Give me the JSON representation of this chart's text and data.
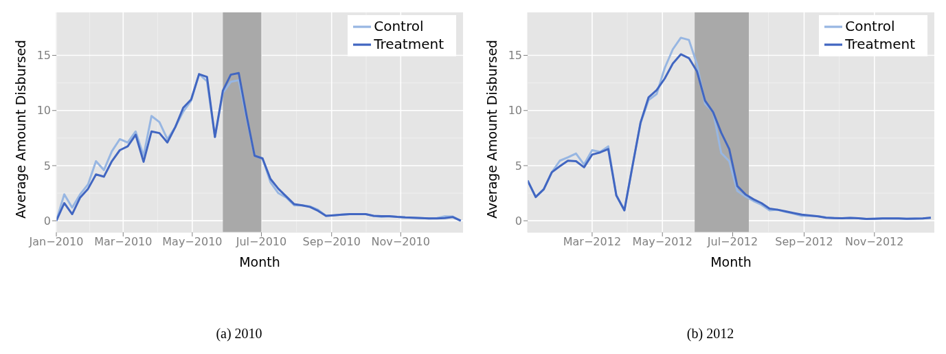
{
  "chart_data": [
    {
      "type": "line",
      "xlabel": "Month",
      "ylabel": "Average Amount Disbursed",
      "annotations": [
        "(a) 2010"
      ],
      "x": [
        "2010-01-01",
        "2010-01-08",
        "2010-01-15",
        "2010-01-22",
        "2010-01-29",
        "2010-02-05",
        "2010-02-12",
        "2010-02-19",
        "2010-02-26",
        "2010-03-05",
        "2010-03-12",
        "2010-03-19",
        "2010-03-26",
        "2010-04-02",
        "2010-04-09",
        "2010-04-16",
        "2010-04-23",
        "2010-04-30",
        "2010-05-07",
        "2010-05-14",
        "2010-05-21",
        "2010-05-28",
        "2010-06-04",
        "2010-06-11",
        "2010-06-18",
        "2010-06-25",
        "2010-07-02",
        "2010-07-09",
        "2010-07-16",
        "2010-07-23",
        "2010-07-30",
        "2010-08-06",
        "2010-08-13",
        "2010-08-20",
        "2010-08-27",
        "2010-09-03",
        "2010-09-10",
        "2010-09-17",
        "2010-09-24",
        "2010-10-01",
        "2010-10-08",
        "2010-10-15",
        "2010-10-22",
        "2010-10-29",
        "2010-11-05",
        "2010-11-12",
        "2010-11-19",
        "2010-11-26",
        "2010-12-03",
        "2010-12-10",
        "2010-12-17",
        "2010-12-24"
      ],
      "series": [
        {
          "name": "Control",
          "color": "#97b6e2",
          "values": [
            0,
            2.4,
            1.2,
            2.4,
            3.3,
            5.4,
            4.6,
            6.3,
            7.4,
            7.1,
            8.1,
            5.9,
            9.5,
            8.95,
            7.4,
            8.5,
            9.9,
            10.9,
            13.3,
            12.65,
            7.6,
            11.6,
            12.6,
            12.75,
            9.3,
            5.9,
            5.65,
            3.5,
            2.5,
            2.1,
            1.4,
            1.4,
            1.3,
            1.0,
            0.45,
            0.5,
            0.55,
            0.6,
            0.6,
            0.6,
            0.45,
            0.35,
            0.4,
            0.35,
            0.3,
            0.28,
            0.25,
            0.22,
            0.25,
            0.4,
            0.38,
            0
          ]
        },
        {
          "name": "Treatment",
          "color": "#4166c1",
          "values": [
            0,
            1.6,
            0.6,
            2.1,
            2.9,
            4.2,
            4.0,
            5.4,
            6.4,
            6.75,
            7.8,
            5.35,
            8.1,
            7.95,
            7.1,
            8.5,
            10.25,
            11.0,
            13.3,
            13.05,
            7.6,
            11.8,
            13.25,
            13.4,
            9.5,
            5.9,
            5.65,
            3.8,
            2.9,
            2.2,
            1.5,
            1.4,
            1.25,
            0.9,
            0.45,
            0.5,
            0.55,
            0.6,
            0.6,
            0.6,
            0.45,
            0.42,
            0.42,
            0.35,
            0.3,
            0.28,
            0.25,
            0.22,
            0.22,
            0.25,
            0.33,
            0
          ]
        }
      ],
      "xlim": [
        "2010-01-01",
        "2010-12-26"
      ],
      "xticks": [
        {
          "value": "2010-01-01",
          "label": "Jan−2010"
        },
        {
          "value": "2010-03-01",
          "label": "Mar−2010"
        },
        {
          "value": "2010-05-01",
          "label": "May−2010"
        },
        {
          "value": "2010-07-01",
          "label": "Jul−2010"
        },
        {
          "value": "2010-09-01",
          "label": "Sep−2010"
        },
        {
          "value": "2010-11-01",
          "label": "Nov−2010"
        }
      ],
      "ylim": [
        -1.05,
        18.9
      ],
      "yticks": [
        0,
        5,
        10,
        15
      ],
      "bands": [
        {
          "axis": "x",
          "from": "2010-05-28",
          "to": "2010-07-01",
          "color": "#a9a9a9"
        }
      ],
      "grid": true,
      "legend": "top right",
      "line_style": "solid"
    },
    {
      "type": "line",
      "xlabel": "Month",
      "ylabel": "Average Amount Disbursed",
      "annotations": [
        "(b) 2012"
      ],
      "x": [
        "2012-01-05",
        "2012-01-12",
        "2012-01-19",
        "2012-01-26",
        "2012-02-02",
        "2012-02-09",
        "2012-02-16",
        "2012-02-23",
        "2012-03-01",
        "2012-03-08",
        "2012-03-15",
        "2012-03-22",
        "2012-03-29",
        "2012-04-05",
        "2012-04-12",
        "2012-04-19",
        "2012-04-26",
        "2012-05-03",
        "2012-05-10",
        "2012-05-17",
        "2012-05-24",
        "2012-05-31",
        "2012-06-07",
        "2012-06-14",
        "2012-06-21",
        "2012-06-28",
        "2012-07-05",
        "2012-07-12",
        "2012-07-19",
        "2012-07-26",
        "2012-08-02",
        "2012-08-09",
        "2012-08-16",
        "2012-08-23",
        "2012-08-30",
        "2012-09-06",
        "2012-09-13",
        "2012-09-20",
        "2012-09-27",
        "2012-10-04",
        "2012-10-11",
        "2012-10-18",
        "2012-10-25",
        "2012-11-01",
        "2012-11-08",
        "2012-11-15",
        "2012-11-22",
        "2012-11-29",
        "2012-12-06",
        "2012-12-13",
        "2012-12-20"
      ],
      "series": [
        {
          "name": "Control",
          "color": "#97b6e2",
          "values": [
            3.65,
            2.15,
            2.85,
            4.4,
            5.45,
            5.75,
            6.1,
            5.1,
            6.4,
            6.25,
            6.75,
            2.3,
            0.95,
            4.95,
            8.85,
            10.95,
            11.5,
            13.85,
            15.55,
            16.6,
            16.4,
            14.2,
            10.6,
            9.9,
            6.15,
            5.4,
            2.7,
            2.2,
            1.8,
            1.45,
            0.95,
            1.0,
            0.8,
            0.65,
            0.45,
            0.45,
            0.42,
            0.3,
            0.25,
            0.23,
            0.26,
            0.23,
            0.17,
            0.18,
            0.21,
            0.21,
            0.21,
            0.18,
            0.19,
            0.21,
            0.28
          ]
        },
        {
          "name": "Treatment",
          "color": "#4166c1",
          "values": [
            3.65,
            2.15,
            2.85,
            4.4,
            4.95,
            5.45,
            5.4,
            4.85,
            6.0,
            6.2,
            6.5,
            2.3,
            0.95,
            4.95,
            8.9,
            11.2,
            11.85,
            12.9,
            14.25,
            15.1,
            14.75,
            13.55,
            10.9,
            9.85,
            8.0,
            6.5,
            3.15,
            2.4,
            1.95,
            1.6,
            1.1,
            1.0,
            0.85,
            0.7,
            0.55,
            0.48,
            0.4,
            0.28,
            0.25,
            0.23,
            0.26,
            0.23,
            0.17,
            0.18,
            0.21,
            0.21,
            0.21,
            0.18,
            0.19,
            0.21,
            0.28
          ]
        }
      ],
      "xlim": [
        "2012-01-05",
        "2012-12-23"
      ],
      "xticks": [
        {
          "value": "2012-03-01",
          "label": "Mar−2012"
        },
        {
          "value": "2012-05-01",
          "label": "May−2012"
        },
        {
          "value": "2012-07-01",
          "label": "Jul−2012"
        },
        {
          "value": "2012-09-01",
          "label": "Sep−2012"
        },
        {
          "value": "2012-11-01",
          "label": "Nov−2012"
        }
      ],
      "ylim": [
        -1.05,
        18.9
      ],
      "yticks": [
        0,
        5,
        10,
        15
      ],
      "bands": [
        {
          "axis": "x",
          "from": "2012-05-29",
          "to": "2012-07-15",
          "color": "#a9a9a9"
        }
      ],
      "grid": true,
      "legend": "top right",
      "line_style": "solid"
    }
  ]
}
